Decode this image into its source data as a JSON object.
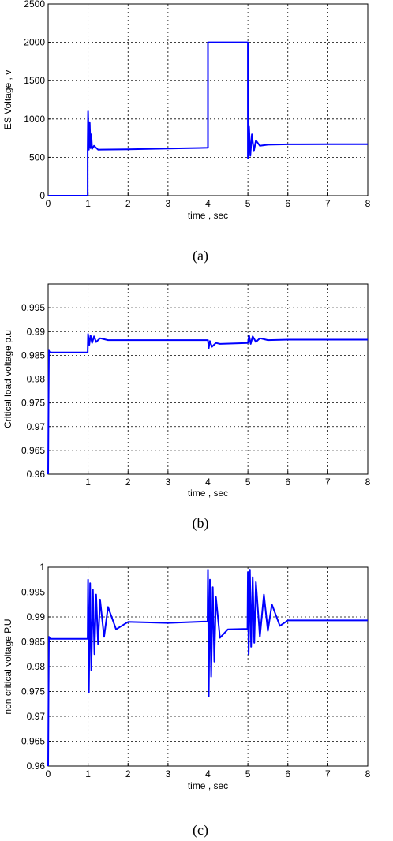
{
  "figure": {
    "captions": [
      "(a)",
      "(b)",
      "(c)"
    ]
  },
  "colors": {
    "series": "#0000ff",
    "grid": "#000000",
    "frame": "#000000"
  },
  "chart_data": [
    {
      "type": "line",
      "title": "",
      "xlabel": "time , sec",
      "ylabel": "ES  Voltage  , v",
      "xlim": [
        0,
        8
      ],
      "ylim": [
        0,
        2500
      ],
      "xticks": [
        0,
        1,
        2,
        3,
        4,
        5,
        6,
        7,
        8
      ],
      "yticks": [
        0,
        500,
        1000,
        1500,
        2000,
        2500
      ],
      "xtick_labels": [
        "0",
        "1",
        "2",
        "3",
        "4",
        "5",
        "6",
        "7",
        "8"
      ],
      "ytick_labels": [
        "0",
        "500",
        "1000",
        "1500",
        "2000",
        "2500"
      ],
      "grid": true,
      "series": [
        {
          "x": [
            0,
            0.99,
            0.99,
            1.0,
            1.02,
            1.04,
            1.06,
            1.08,
            1.1,
            1.15,
            1.25,
            2,
            3,
            4,
            4.0,
            5,
            5.0,
            5.03,
            5.06,
            5.1,
            5.15,
            5.2,
            5.3,
            5.5,
            6,
            7,
            8
          ],
          "y": [
            0,
            0,
            600,
            1100,
            600,
            950,
            620,
            800,
            610,
            650,
            600,
            605,
            615,
            625,
            2000,
            2000,
            490,
            900,
            520,
            800,
            580,
            720,
            650,
            665,
            670,
            672,
            672
          ]
        }
      ]
    },
    {
      "type": "line",
      "title": "",
      "xlabel": "time , sec",
      "ylabel": "Critical load voltage p.u",
      "xlim": [
        0,
        8
      ],
      "ylim": [
        0.96,
        1.0
      ],
      "xticks": [
        1,
        2,
        3,
        4,
        5,
        6,
        7,
        8
      ],
      "yticks": [
        0.96,
        0.965,
        0.97,
        0.975,
        0.98,
        0.985,
        0.99,
        0.995
      ],
      "xtick_labels": [
        "1",
        "2",
        "3",
        "4",
        "5",
        "6",
        "7",
        "8"
      ],
      "ytick_labels": [
        "0.96",
        "0.965",
        "0.97",
        "0.975",
        "0.98",
        "0.985",
        "0.99",
        "0.995"
      ],
      "grid": true,
      "series": [
        {
          "x": [
            0,
            0.01,
            0.02,
            0.03,
            0.05,
            0.99,
            1.0,
            1.03,
            1.06,
            1.1,
            1.15,
            1.2,
            1.3,
            1.5,
            2,
            3,
            4.0,
            4.02,
            4.05,
            4.1,
            4.2,
            4.3,
            5.0,
            5.03,
            5.07,
            5.12,
            5.2,
            5.3,
            5.5,
            6,
            7,
            8
          ],
          "y": [
            0.96,
            0.975,
            0.986,
            0.9858,
            0.9856,
            0.9856,
            0.9895,
            0.9872,
            0.9892,
            0.9876,
            0.989,
            0.9878,
            0.9886,
            0.9882,
            0.9882,
            0.9882,
            0.9882,
            0.9865,
            0.988,
            0.9868,
            0.9876,
            0.9874,
            0.9876,
            0.9892,
            0.9874,
            0.989,
            0.9878,
            0.9886,
            0.9882,
            0.9883,
            0.9883,
            0.9883
          ]
        }
      ]
    },
    {
      "type": "line",
      "title": "",
      "xlabel": "time , sec",
      "ylabel": "non critical voltage  P.U",
      "xlim": [
        0,
        8
      ],
      "ylim": [
        0.96,
        1.0
      ],
      "xticks": [
        0,
        1,
        2,
        3,
        4,
        5,
        6,
        7,
        8
      ],
      "yticks": [
        0.96,
        0.965,
        0.97,
        0.975,
        0.98,
        0.985,
        0.99,
        0.995,
        1.0
      ],
      "xtick_labels": [
        "0",
        "1",
        "2",
        "3",
        "4",
        "5",
        "6",
        "7",
        "8"
      ],
      "ytick_labels": [
        "0.96",
        "0.965",
        "0.97",
        "0.975",
        "0.98",
        "0.985",
        "0.99",
        "0.995",
        "1"
      ],
      "grid": true,
      "series": [
        {
          "x": [
            0,
            0.01,
            0.02,
            0.05,
            0.99,
            1.0,
            1.02,
            1.05,
            1.08,
            1.12,
            1.16,
            1.2,
            1.25,
            1.3,
            1.4,
            1.5,
            1.7,
            2,
            3,
            3.99,
            4.0,
            4.02,
            4.05,
            4.08,
            4.12,
            4.16,
            4.2,
            4.3,
            4.5,
            4.99,
            5.0,
            5.02,
            5.05,
            5.08,
            5.12,
            5.16,
            5.2,
            5.3,
            5.4,
            5.5,
            5.6,
            5.8,
            6,
            7,
            8
          ],
          "y": [
            0.96,
            0.975,
            0.986,
            0.9856,
            0.9856,
            0.9975,
            0.9748,
            0.9968,
            0.9792,
            0.9955,
            0.9825,
            0.9945,
            0.9845,
            0.9935,
            0.986,
            0.992,
            0.9875,
            0.989,
            0.9888,
            0.9891,
            0.9995,
            0.974,
            0.9975,
            0.978,
            0.996,
            0.981,
            0.994,
            0.9858,
            0.9875,
            0.9876,
            0.999,
            0.9825,
            0.9995,
            0.984,
            0.998,
            0.9848,
            0.997,
            0.986,
            0.9945,
            0.9872,
            0.9925,
            0.9882,
            0.9893,
            0.9893,
            0.9893
          ]
        }
      ]
    }
  ]
}
